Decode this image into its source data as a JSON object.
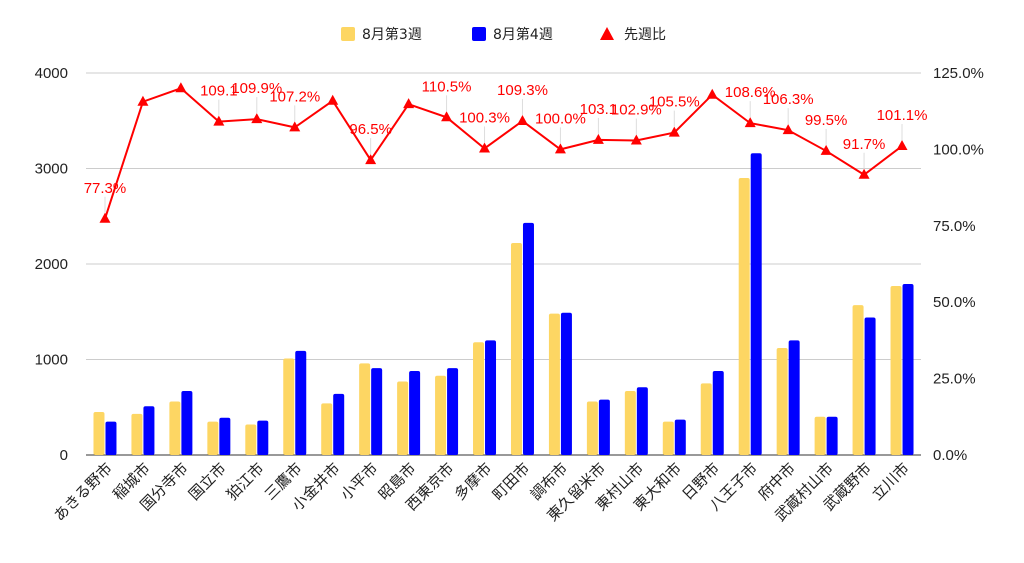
{
  "chart_data": {
    "type": "bar",
    "categories": [
      "あきる野市",
      "稲城市",
      "国分寺市",
      "国立市",
      "狛江市",
      "三鷹市",
      "小金井市",
      "小平市",
      "昭島市",
      "西東京市",
      "多摩市",
      "町田市",
      "調布市",
      "東久留米市",
      "東村山市",
      "東大和市",
      "日野市",
      "八王子市",
      "府中市",
      "武蔵村山市",
      "武蔵野市",
      "立川市"
    ],
    "series": [
      {
        "name": "8月第3週",
        "axis": "left",
        "color": "#FDD663",
        "values": [
          450,
          430,
          560,
          350,
          320,
          1010,
          540,
          960,
          770,
          830,
          1180,
          2220,
          1480,
          560,
          670,
          350,
          750,
          2900,
          1120,
          400,
          1570,
          1770
        ]
      },
      {
        "name": "8月第4週",
        "axis": "left",
        "color": "#0000FF",
        "values": [
          350,
          510,
          670,
          390,
          360,
          1090,
          640,
          910,
          880,
          910,
          1200,
          2430,
          1490,
          580,
          710,
          370,
          880,
          3160,
          1200,
          400,
          1440,
          1790
        ]
      },
      {
        "name": "先週比",
        "axis": "right",
        "type": "line",
        "color": "#FF0000",
        "values": [
          77.3,
          115.6,
          120.0,
          109.1,
          109.9,
          107.2,
          115.9,
          96.5,
          114.8,
          110.5,
          100.3,
          109.3,
          100.0,
          103.1,
          102.9,
          105.5,
          117.9,
          108.6,
          106.3,
          99.5,
          91.7,
          101.1
        ],
        "labels": [
          "77.3%",
          "",
          "",
          "109.1",
          "109.9%",
          "107.2%",
          "",
          "96.5%",
          "",
          "110.5%",
          "100.3%",
          "109.3%",
          "100.0%",
          "103.1",
          "102.9%",
          "105.5%",
          "",
          "108.6%",
          "106.3%",
          "99.5%",
          "91.7%",
          "101.1%"
        ]
      }
    ],
    "left_axis": {
      "min": 0,
      "max": 4000,
      "ticks": [
        "0",
        "1000",
        "2000",
        "3000",
        "4000"
      ]
    },
    "right_axis": {
      "min": 0,
      "max": 125,
      "ticks": [
        "0.0%",
        "25.0%",
        "50.0%",
        "75.0%",
        "100.0%",
        "125.0%"
      ]
    },
    "grid": true,
    "legend_position": "top"
  }
}
